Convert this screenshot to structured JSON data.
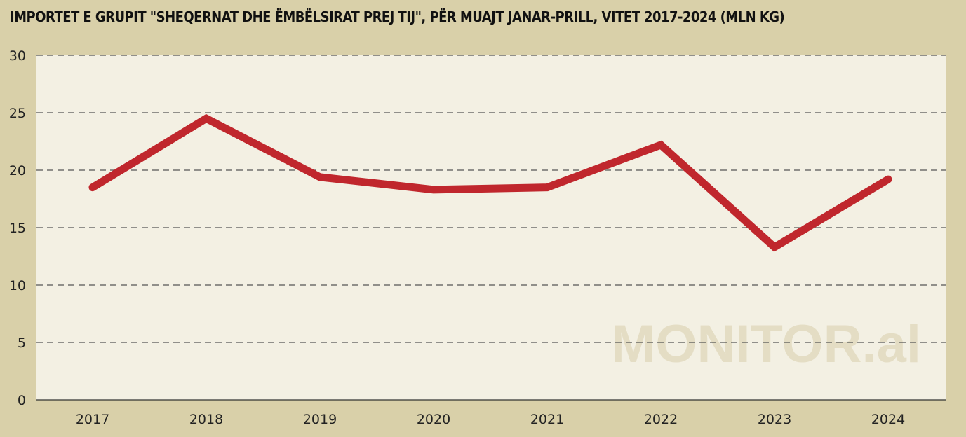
{
  "chart_data": {
    "type": "line",
    "title": "IMPORTET E GRUPIT \"SHEQERNAT DHE ËMBËLSIRAT PREJ TIJ\", PËR MUAJT JANAR-PRILL, VITET 2017-2024 (MLN KG)",
    "xlabel": "",
    "ylabel": "",
    "categories": [
      "2017",
      "2018",
      "2019",
      "2020",
      "2021",
      "2022",
      "2023",
      "2024"
    ],
    "series": [
      {
        "values": [
          18.5,
          24.5,
          19.4,
          18.3,
          18.5,
          22.2,
          13.3,
          19.2
        ]
      }
    ],
    "ylim": [
      0,
      30
    ],
    "yticks": [
      0,
      5,
      10,
      15,
      20,
      25,
      30
    ],
    "grid": true,
    "legend": "none",
    "watermark": "MONITOR.al",
    "colors": {
      "line": "#c0272d",
      "plot_background": "#f3f0e3",
      "page_background": "#d9d0a9",
      "grid": "#555555",
      "watermark": "#e4ddc4"
    }
  }
}
